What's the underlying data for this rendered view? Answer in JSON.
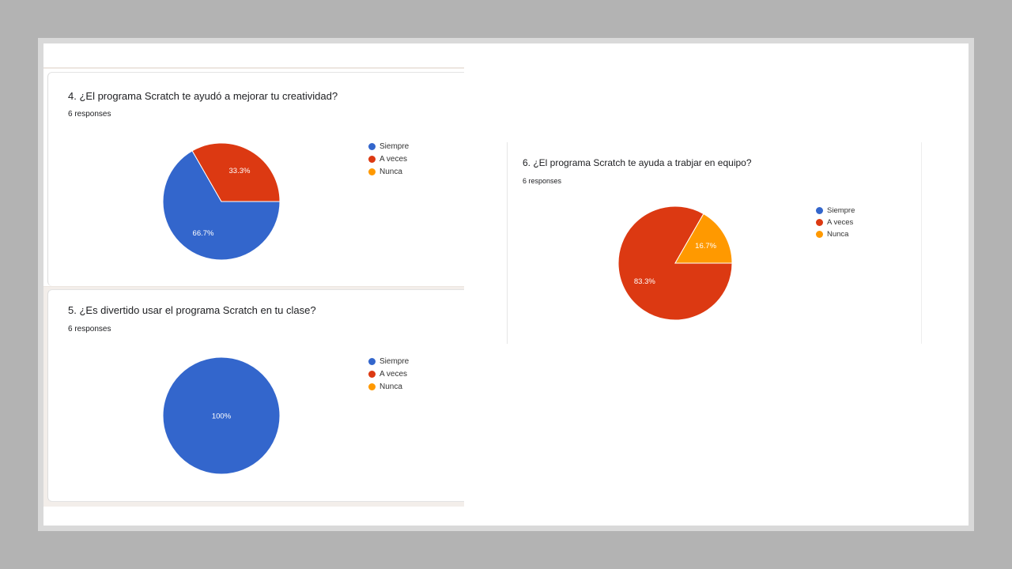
{
  "colors": {
    "Siempre": "#3366cc",
    "A veces": "#dc3912",
    "Nunca": "#ff9900"
  },
  "chart_data": [
    {
      "type": "pie",
      "title": "4. ¿El programa Scratch te ayudó a mejorar tu creatividad?",
      "subtitle": "6 responses",
      "categories": [
        "Siempre",
        "A veces",
        "Nunca"
      ],
      "values": [
        66.7,
        33.3,
        0
      ],
      "labels": [
        "66.7%",
        "33.3%",
        ""
      ],
      "legend": "right"
    },
    {
      "type": "pie",
      "title": "5. ¿Es divertido usar el programa Scratch en tu clase?",
      "subtitle": "6 responses",
      "categories": [
        "Siempre",
        "A veces",
        "Nunca"
      ],
      "values": [
        100,
        0,
        0
      ],
      "labels": [
        "100%",
        "",
        ""
      ],
      "legend": "right"
    },
    {
      "type": "pie",
      "title": "6. ¿El programa Scratch te ayuda a trabjar en equipo?",
      "subtitle": "6 responses",
      "categories": [
        "Siempre",
        "A veces",
        "Nunca"
      ],
      "values": [
        0,
        83.3,
        16.7
      ],
      "labels": [
        "",
        "83.3%",
        "16.7%"
      ],
      "legend": "right"
    }
  ]
}
